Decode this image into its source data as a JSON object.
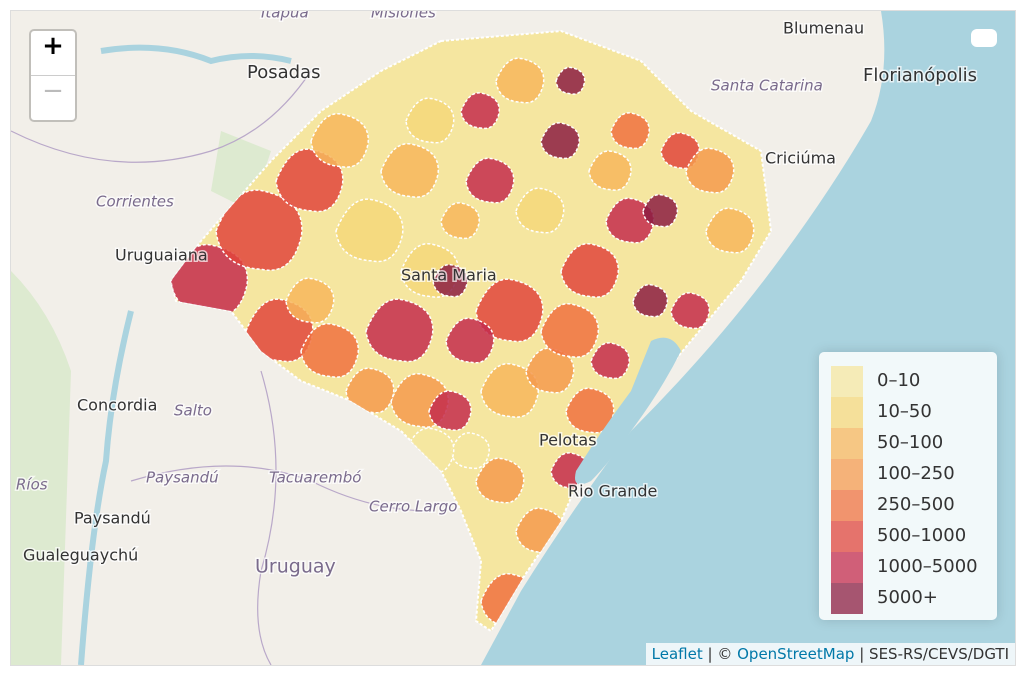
{
  "map": {
    "zoom": {
      "in": "+",
      "out": "−"
    },
    "places": [
      {
        "text": "Blumenau",
        "style": "city"
      },
      {
        "text": "Florianópolis",
        "style": "capital"
      },
      {
        "text": "Posadas",
        "style": "capital"
      },
      {
        "text": "Santa Catarina",
        "style": "region"
      },
      {
        "text": "Criciúma",
        "style": "city"
      },
      {
        "text": "Corrientes",
        "style": "region"
      },
      {
        "text": "Uruguaiana",
        "style": "city"
      },
      {
        "text": "Concordia",
        "style": "city"
      },
      {
        "text": "Salto",
        "style": "region"
      },
      {
        "text": "Paysandú",
        "style": "region"
      },
      {
        "text": "Tacuarembó",
        "style": "region"
      },
      {
        "text": "Paysandú",
        "style": "city"
      },
      {
        "text": "Ríos",
        "style": "region"
      },
      {
        "text": "Cerro Largo",
        "style": "region"
      },
      {
        "text": "Gualeguaychú",
        "style": "city"
      },
      {
        "text": "Uruguay",
        "style": "country"
      },
      {
        "text": "Rio Grande",
        "style": "city"
      },
      {
        "text": "Pelotas",
        "style": "city"
      },
      {
        "text": "Santa Maria",
        "style": "city"
      },
      {
        "text": "Itapúa",
        "style": "region"
      },
      {
        "text": "Misiones",
        "style": "region"
      }
    ],
    "legend": {
      "items": [
        {
          "label": "0–10",
          "color": "#f5e6a0"
        },
        {
          "label": "10–50",
          "color": "#f5d77a"
        },
        {
          "label": "50–100",
          "color": "#f7b65c"
        },
        {
          "label": "100–250",
          "color": "#f59a4e"
        },
        {
          "label": "250–500",
          "color": "#f0713f"
        },
        {
          "label": "500–1000",
          "color": "#e0453c"
        },
        {
          "label": "1000–5000",
          "color": "#c42b4c"
        },
        {
          "label": "5000+",
          "color": "#8c1d42"
        }
      ]
    },
    "attribution": {
      "leaflet": "Leaflet",
      "sep1": "| ©",
      "osm": "OpenStreetMap",
      "sep2": "|",
      "source": "SES-RS/CEVS/DGTI"
    }
  }
}
